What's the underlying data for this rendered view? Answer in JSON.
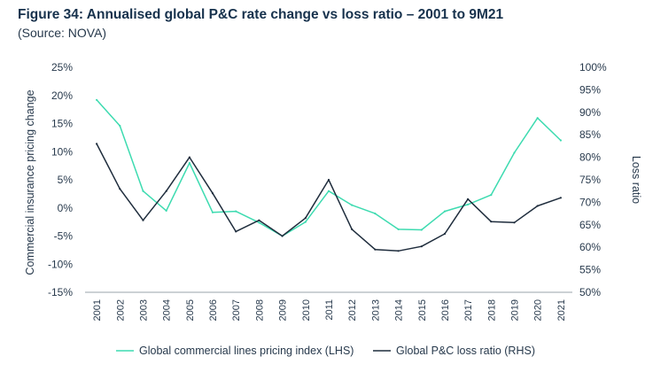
{
  "title": "Figure 34: Annualised global P&C rate change vs loss ratio – 2001 to 9M21",
  "subtitle": "(Source: NOVA)",
  "chart_data": {
    "type": "line",
    "x": [
      "2001",
      "2002",
      "2003",
      "2004",
      "2005",
      "2006",
      "2007",
      "2008",
      "2009",
      "2010",
      "2011",
      "2012",
      "2013",
      "2014",
      "2015",
      "2016",
      "2017",
      "2018",
      "2019",
      "2020",
      "2021"
    ],
    "ylabel": "Commercial insurance pricing change",
    "y2label": "Loss ratio",
    "ylim": [
      -15,
      25
    ],
    "y2lim": [
      50,
      100
    ],
    "yticks": [
      "25%",
      "20%",
      "15%",
      "10%",
      "5%",
      "0%",
      "-5%",
      "-10%",
      "-15%"
    ],
    "y2ticks": [
      "100%",
      "95%",
      "90%",
      "85%",
      "80%",
      "75%",
      "70%",
      "65%",
      "60%",
      "55%",
      "50%"
    ],
    "grid": false,
    "legend_position": "bottom",
    "series": [
      {
        "name": "Global commercial lines pricing index (LHS)",
        "axis": "left",
        "color": "#3ddbb0",
        "values": [
          19.2,
          14.6,
          3.0,
          -0.5,
          8.0,
          -0.8,
          -0.6,
          -2.6,
          -5.0,
          -2.5,
          3.0,
          0.5,
          -1.0,
          -3.8,
          -3.9,
          -0.6,
          0.6,
          2.3,
          9.8,
          16.0,
          12.0
        ]
      },
      {
        "name": "Global P&C loss ratio (RHS)",
        "axis": "right",
        "color": "#1f2d3d",
        "values": [
          83,
          73,
          66,
          72.5,
          80,
          72,
          63.5,
          66,
          62.5,
          66.5,
          75,
          64,
          59.5,
          59.2,
          60.2,
          63,
          70.7,
          65.7,
          65.5,
          69.2,
          71
        ]
      }
    ]
  }
}
